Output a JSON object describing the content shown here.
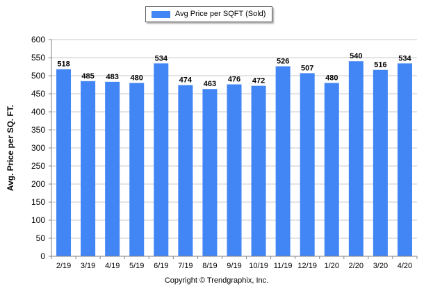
{
  "chart_data": {
    "type": "bar",
    "categories": [
      "2/19",
      "3/19",
      "4/19",
      "5/19",
      "6/19",
      "7/19",
      "8/19",
      "9/19",
      "10/19",
      "11/19",
      "12/19",
      "1/20",
      "2/20",
      "3/20",
      "4/20"
    ],
    "series": [
      {
        "name": "Avg Price per SQFT (Sold)",
        "values": [
          518,
          485,
          483,
          480,
          534,
          474,
          463,
          476,
          472,
          526,
          507,
          480,
          540,
          516,
          534
        ]
      }
    ],
    "title": "",
    "xlabel": "",
    "ylabel": "Avg. Price per SQ. FT.",
    "ylim": [
      0,
      600
    ],
    "yticks": [
      0,
      50,
      100,
      150,
      200,
      250,
      300,
      350,
      400,
      450,
      500,
      550,
      600
    ],
    "grid": true,
    "legend": "top-center",
    "data_labels": true
  },
  "colors": {
    "bar": "#4285f4",
    "grid": "#c8c8c8",
    "axis": "#808080"
  },
  "footer": {
    "copyright": "Copyright © Trendgraphix, Inc."
  }
}
